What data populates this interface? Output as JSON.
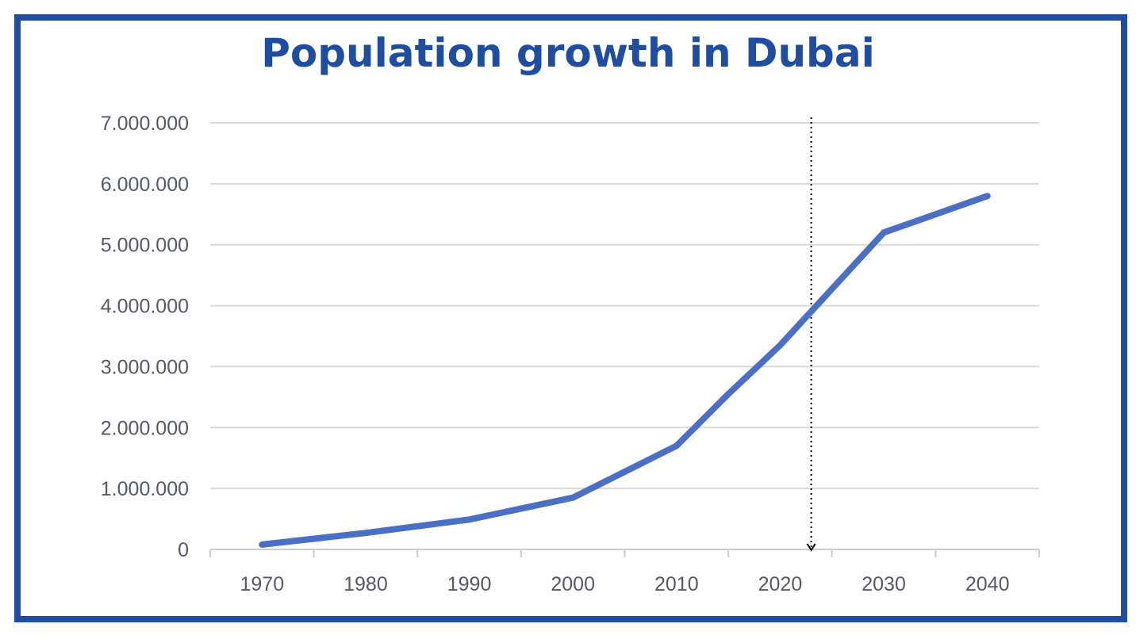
{
  "chart_data": {
    "type": "line",
    "title": "Population growth in Dubai",
    "xlabel": "",
    "ylabel": "",
    "categories": [
      "1970",
      "1980",
      "1990",
      "2000",
      "2010",
      "2020",
      "2030",
      "2040"
    ],
    "x": [
      1970,
      1980,
      1990,
      2000,
      2010,
      2020,
      2030,
      2040
    ],
    "series": [
      {
        "x": [
          1970,
          1980,
          1990,
          2000,
          2010,
          2015,
          2020,
          2030,
          2040
        ],
        "values": [
          80000,
          270000,
          490000,
          850000,
          1700000,
          2550000,
          3350000,
          5200000,
          5800000
        ]
      }
    ],
    "ylim": [
      0,
      7000000
    ],
    "yticks": [
      0,
      1000000,
      2000000,
      3000000,
      4000000,
      5000000,
      6000000,
      7000000
    ],
    "ytick_labels": [
      "0",
      "1.000.000",
      "2.000.000",
      "3.000.000",
      "4.000.000",
      "5.000.000",
      "6.000.000",
      "7.000.000"
    ],
    "vertical_marker": {
      "x": 2023,
      "style": "dotted-arrow"
    },
    "grid": true,
    "colors": {
      "line": "#4a6fc4",
      "title": "#1f4ea0",
      "frame": "#1f4ea0",
      "grid": "#d9d9d9",
      "marker": "#000000"
    }
  }
}
